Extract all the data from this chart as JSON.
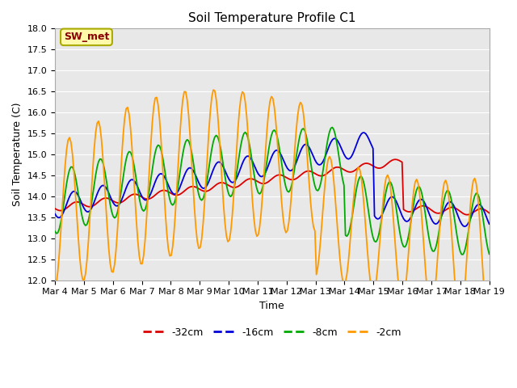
{
  "title": "Soil Temperature Profile C1",
  "xlabel": "Time",
  "ylabel": "Soil Temperature (C)",
  "ylim": [
    12.0,
    18.0
  ],
  "yticks": [
    12.0,
    12.5,
    13.0,
    13.5,
    14.0,
    14.5,
    15.0,
    15.5,
    16.0,
    16.5,
    17.0,
    17.5,
    18.0
  ],
  "annotation": "SW_met",
  "annotation_color": "#8B0000",
  "annotation_bg": "#FFFAAA",
  "annotation_edge": "#AAAA00",
  "bg_color": "#E8E8E8",
  "fig_color": "#FFFFFF",
  "line_colors": {
    "-32cm": "#DD0000",
    "-16cm": "#0000DD",
    "-8cm": "#00AA00",
    "-2cm": "#FF9900"
  },
  "tick_dates": [
    "Mar 4",
    "Mar 5",
    "Mar 6",
    "Mar 7",
    "Mar 8",
    "Mar 9",
    "Mar 10",
    "Mar 11",
    "Mar 12",
    "Mar 13",
    "Mar 14",
    "Mar 15",
    "Mar 16",
    "Mar 17",
    "Mar 18",
    "Mar 19"
  ],
  "legend_labels": [
    "-32cm",
    "-16cm",
    "-8cm",
    "-2cm"
  ],
  "linewidth": 1.3,
  "grid_color": "#FFFFFF",
  "spine_color": "#AAAAAA",
  "title_fontsize": 11,
  "label_fontsize": 9,
  "tick_fontsize": 8,
  "legend_fontsize": 9
}
